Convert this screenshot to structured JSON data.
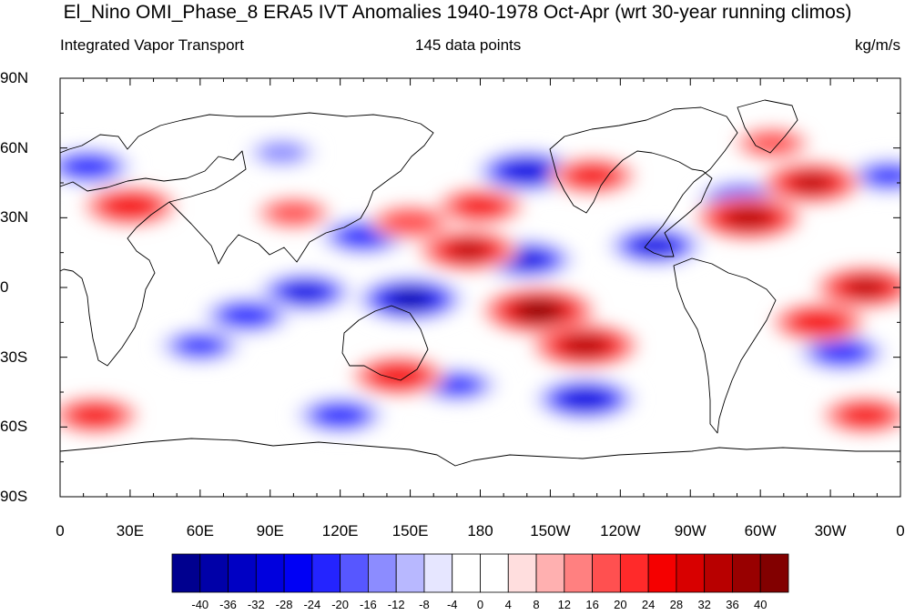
{
  "title": "El_Nino OMI_Phase_8 ERA5 IVT Anomalies 1940-1978 Oct-Apr (wrt 30-year running climos)",
  "subtitle_left": "Integrated Vapor Transport",
  "subtitle_center": "145 data points",
  "subtitle_right": "kg/m/s",
  "lat_labels": [
    "90N",
    "60N",
    "30N",
    "0",
    "30S",
    "60S",
    "90S"
  ],
  "lon_labels": [
    "0",
    "30E",
    "60E",
    "90E",
    "120E",
    "150E",
    "180",
    "150W",
    "120W",
    "90W",
    "60W",
    "30W",
    "0"
  ],
  "colorbar": {
    "labels": [
      "-40",
      "-36",
      "-32",
      "-28",
      "-24",
      "-20",
      "-16",
      "-12",
      "-8",
      "-4",
      "0",
      "4",
      "8",
      "12",
      "16",
      "20",
      "24",
      "28",
      "32",
      "36",
      "40"
    ],
    "colors": [
      "#00008f",
      "#0000a8",
      "#0000c4",
      "#0000de",
      "#0000f5",
      "#2424ff",
      "#5757ff",
      "#8c8cff",
      "#b8b8ff",
      "#e6e6ff",
      "#ffffff",
      "#ffffff",
      "#ffdede",
      "#ffb0b0",
      "#ff8080",
      "#ff5050",
      "#ff2a2a",
      "#f50000",
      "#d80000",
      "#b80000",
      "#980000",
      "#820000"
    ]
  },
  "map": {
    "projection": "cylindrical-equidistant",
    "lat_range": [
      -90,
      90
    ],
    "lon_range": [
      0,
      360
    ],
    "anomalies": [
      {
        "lon": 150,
        "lat": -5,
        "value": -40
      },
      {
        "lon": 105,
        "lat": -2,
        "value": -32
      },
      {
        "lon": 80,
        "lat": -12,
        "value": -28
      },
      {
        "lon": 130,
        "lat": 22,
        "value": -28
      },
      {
        "lon": 200,
        "lat": 12,
        "value": -32
      },
      {
        "lon": 255,
        "lat": 18,
        "value": -32
      },
      {
        "lon": 200,
        "lat": 50,
        "value": -36
      },
      {
        "lon": 292,
        "lat": 38,
        "value": -28
      },
      {
        "lon": 355,
        "lat": 48,
        "value": -24
      },
      {
        "lon": 12,
        "lat": 52,
        "value": -28
      },
      {
        "lon": 95,
        "lat": 58,
        "value": -16
      },
      {
        "lon": 60,
        "lat": -25,
        "value": -24
      },
      {
        "lon": 120,
        "lat": -55,
        "value": -28
      },
      {
        "lon": 225,
        "lat": -48,
        "value": -36
      },
      {
        "lon": 335,
        "lat": -28,
        "value": -28
      },
      {
        "lon": 170,
        "lat": -42,
        "value": -24
      },
      {
        "lon": 205,
        "lat": -10,
        "value": 40
      },
      {
        "lon": 225,
        "lat": -25,
        "value": 36
      },
      {
        "lon": 175,
        "lat": 16,
        "value": 32
      },
      {
        "lon": 295,
        "lat": 30,
        "value": 36
      },
      {
        "lon": 322,
        "lat": 45,
        "value": 32
      },
      {
        "lon": 30,
        "lat": 35,
        "value": 28
      },
      {
        "lon": 180,
        "lat": 35,
        "value": 24
      },
      {
        "lon": 228,
        "lat": 48,
        "value": 24
      },
      {
        "lon": 145,
        "lat": -38,
        "value": 28
      },
      {
        "lon": 325,
        "lat": -15,
        "value": 28
      },
      {
        "lon": 345,
        "lat": 0,
        "value": 32
      },
      {
        "lon": 345,
        "lat": -55,
        "value": 24
      },
      {
        "lon": 15,
        "lat": -55,
        "value": 24
      },
      {
        "lon": 100,
        "lat": 32,
        "value": 16
      },
      {
        "lon": 150,
        "lat": 28,
        "value": 20
      },
      {
        "lon": 305,
        "lat": 62,
        "value": 16
      }
    ]
  }
}
